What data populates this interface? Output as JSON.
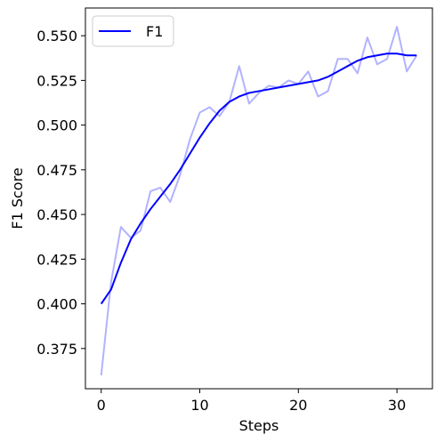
{
  "chart_data": {
    "type": "line",
    "xlabel": "Steps",
    "ylabel": "F1 Score",
    "xlim": [
      -1.6,
      33.6
    ],
    "ylim": [
      0.3525,
      0.5655
    ],
    "x_ticks": [
      0,
      10,
      20,
      30
    ],
    "x_tick_labels": [
      "0",
      "10",
      "20",
      "30"
    ],
    "y_ticks": [
      0.375,
      0.4,
      0.425,
      0.45,
      0.475,
      0.5,
      0.525,
      0.55
    ],
    "y_tick_labels": [
      "0.375",
      "0.400",
      "0.425",
      "0.450",
      "0.475",
      "0.500",
      "0.525",
      "0.550"
    ],
    "grid": false,
    "legend_position": "top-left",
    "x": [
      0,
      1,
      2,
      3,
      4,
      5,
      6,
      7,
      8,
      9,
      10,
      11,
      12,
      13,
      14,
      15,
      16,
      17,
      18,
      19,
      20,
      21,
      22,
      23,
      24,
      25,
      26,
      27,
      28,
      29,
      30,
      31,
      32
    ],
    "series": [
      {
        "name": "",
        "style": "raw",
        "color": "#0000ff",
        "opacity": 0.3,
        "values": [
          0.36,
          0.412,
          0.443,
          0.437,
          0.441,
          0.463,
          0.465,
          0.457,
          0.472,
          0.492,
          0.507,
          0.51,
          0.505,
          0.513,
          0.533,
          0.512,
          0.518,
          0.522,
          0.521,
          0.525,
          0.523,
          0.53,
          0.516,
          0.519,
          0.537,
          0.537,
          0.529,
          0.549,
          0.534,
          0.537,
          0.555,
          0.53,
          0.539
        ]
      },
      {
        "name": "F1",
        "style": "smoothed",
        "color": "#0000ff",
        "opacity": 1,
        "values": [
          0.4,
          0.408,
          0.423,
          0.436,
          0.445,
          0.453,
          0.46,
          0.467,
          0.475,
          0.484,
          0.493,
          0.501,
          0.508,
          0.513,
          0.516,
          0.518,
          0.519,
          0.52,
          0.521,
          0.522,
          0.523,
          0.524,
          0.525,
          0.527,
          0.53,
          0.533,
          0.536,
          0.538,
          0.539,
          0.54,
          0.54,
          0.539,
          0.539
        ]
      }
    ]
  }
}
